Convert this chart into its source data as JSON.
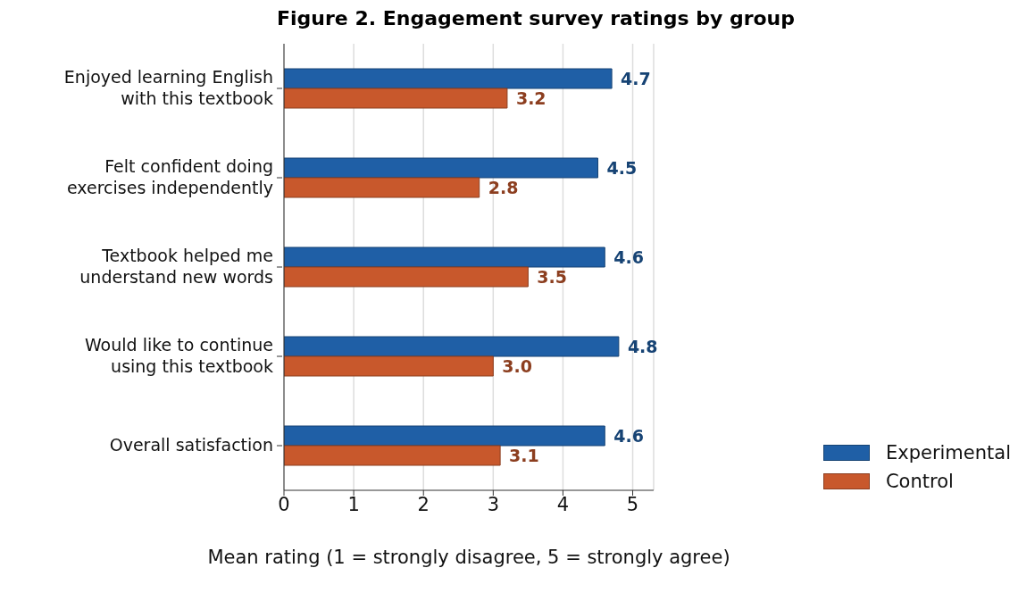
{
  "chart_data": {
    "type": "bar",
    "orientation": "horizontal",
    "title": "Figure 2. Engagement survey ratings by group",
    "xlabel": "Mean rating (1 = strongly disagree, 5 = strongly agree)",
    "categories": [
      "Enjoyed learning English with this textbook",
      "Felt confident doing exercises independently",
      "Textbook helped me understand new words",
      "Would like to continue using this textbook",
      "Overall satisfaction"
    ],
    "series": [
      {
        "name": "Experimental",
        "color": "#1f5fa6",
        "values": [
          4.7,
          4.5,
          4.6,
          4.8,
          4.6
        ],
        "value_labels": [
          "4.7",
          "4.5",
          "4.6",
          "4.8",
          "4.6"
        ]
      },
      {
        "name": "Control",
        "color": "#c8582c",
        "values": [
          3.2,
          2.8,
          3.5,
          3.0,
          3.1
        ],
        "value_labels": [
          "3.2",
          "2.8",
          "3.5",
          "3.0",
          "3.1"
        ]
      }
    ],
    "xlim": [
      0,
      5.3
    ],
    "xticks": [
      0,
      1,
      2,
      3,
      4,
      5
    ],
    "grid": "x",
    "legend": "bottom right"
  }
}
